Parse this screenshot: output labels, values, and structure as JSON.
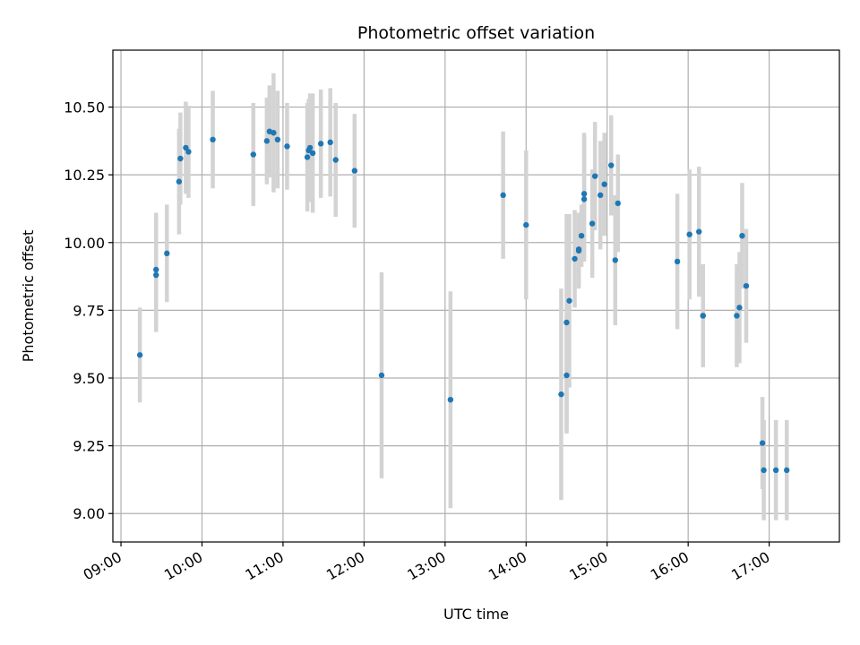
{
  "chart_data": {
    "type": "scatter",
    "title": "Photometric offset variation",
    "xlabel": "UTC time",
    "ylabel": "Photometric offset",
    "x_axis": "time",
    "xlim": [
      "08:54",
      "17:52"
    ],
    "ylim": [
      8.895,
      10.71
    ],
    "xticks": [
      "09:00",
      "10:00",
      "11:00",
      "12:00",
      "13:00",
      "14:00",
      "15:00",
      "16:00",
      "17:00"
    ],
    "yticks": [
      "9.00",
      "9.25",
      "9.50",
      "9.75",
      "10.00",
      "10.25",
      "10.50"
    ],
    "grid": true,
    "colors": {
      "point": "#1f77b4",
      "errorbar": "#d3d3d3",
      "grid": "#b0b0b0"
    },
    "series": [
      {
        "x": [
          "09:14",
          "09:26",
          "09:26",
          "09:34",
          "09:43",
          "09:44",
          "09:48",
          "09:50",
          "10:08",
          "10:38",
          "10:48",
          "10:50",
          "10:53",
          "10:56",
          "11:03",
          "11:18",
          "11:19",
          "11:20",
          "11:22",
          "11:28",
          "11:35",
          "11:39",
          "11:53",
          "12:13",
          "13:04",
          "13:43",
          "14:00",
          "14:26",
          "14:30",
          "14:30",
          "14:32",
          "14:36",
          "14:39",
          "14:39",
          "14:41",
          "14:43",
          "14:43",
          "14:49",
          "14:51",
          "14:55",
          "14:58",
          "15:03",
          "15:06",
          "15:08",
          "15:52",
          "16:01",
          "16:08",
          "16:11",
          "16:11",
          "16:36",
          "16:38",
          "16:40",
          "16:43",
          "16:55",
          "16:56",
          "17:05",
          "17:13"
        ],
        "y": [
          9.585,
          9.9,
          9.88,
          9.96,
          10.225,
          10.31,
          10.35,
          10.335,
          10.38,
          10.325,
          10.375,
          10.41,
          10.405,
          10.38,
          10.355,
          10.315,
          10.34,
          10.35,
          10.33,
          10.365,
          10.37,
          10.305,
          10.265,
          9.51,
          9.42,
          10.175,
          10.065,
          9.44,
          9.51,
          9.705,
          9.785,
          9.94,
          9.97,
          9.975,
          10.025,
          10.16,
          10.18,
          10.07,
          10.245,
          10.175,
          10.215,
          10.285,
          9.935,
          10.145,
          9.93,
          10.03,
          10.04,
          9.73,
          9.73,
          9.73,
          9.76,
          10.025,
          9.84,
          9.26,
          9.16,
          9.16,
          9.16
        ],
        "err": [
          0.175,
          0.21,
          0.21,
          0.18,
          0.195,
          0.17,
          0.17,
          0.17,
          0.18,
          0.19,
          0.16,
          0.17,
          0.22,
          0.18,
          0.16,
          0.2,
          0.19,
          0.2,
          0.22,
          0.2,
          0.2,
          0.21,
          0.21,
          0.38,
          0.4,
          0.235,
          0.275,
          0.39,
          0.215,
          0.4,
          0.32,
          0.18,
          0.14,
          0.13,
          0.115,
          0.23,
          0.225,
          0.2,
          0.2,
          0.2,
          0.19,
          0.185,
          0.24,
          0.18,
          0.25,
          0.24,
          0.24,
          0.19,
          0.19,
          0.19,
          0.205,
          0.195,
          0.21,
          0.17,
          0.185,
          0.185,
          0.185
        ]
      }
    ]
  }
}
